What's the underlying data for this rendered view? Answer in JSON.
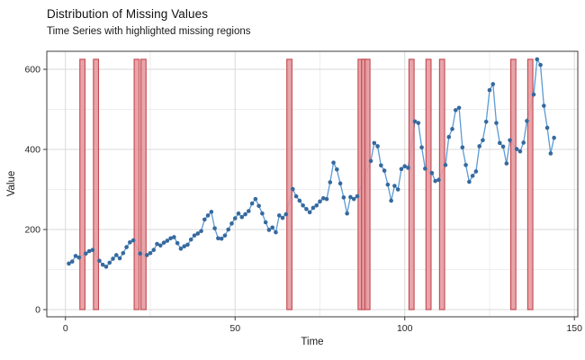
{
  "chart": {
    "title": "Distribution of Missing Values",
    "subtitle": "Time Series with highlighted missing regions",
    "xlabel": "Time",
    "ylabel": "Value"
  },
  "chart_data": {
    "type": "line",
    "title": "Distribution of Missing Values",
    "subtitle": "Time Series with highlighted missing regions",
    "xlabel": "Time",
    "ylabel": "Value",
    "x": [
      1,
      2,
      3,
      4,
      5,
      6,
      7,
      8,
      9,
      10,
      11,
      12,
      13,
      14,
      15,
      16,
      17,
      18,
      19,
      20,
      21,
      22,
      23,
      24,
      25,
      26,
      27,
      28,
      29,
      30,
      31,
      32,
      33,
      34,
      35,
      36,
      37,
      38,
      39,
      40,
      41,
      42,
      43,
      44,
      45,
      46,
      47,
      48,
      49,
      50,
      51,
      52,
      53,
      54,
      55,
      56,
      57,
      58,
      59,
      60,
      61,
      62,
      63,
      64,
      65,
      66,
      67,
      68,
      69,
      70,
      71,
      72,
      73,
      74,
      75,
      76,
      77,
      78,
      79,
      80,
      81,
      82,
      83,
      84,
      85,
      86,
      87,
      88,
      89,
      90,
      91,
      92,
      93,
      94,
      95,
      96,
      97,
      98,
      99,
      100,
      101,
      102,
      103,
      104,
      105,
      106,
      107,
      108,
      109,
      110,
      111,
      112,
      113,
      114,
      115,
      116,
      117,
      118,
      119,
      120,
      121,
      122,
      123,
      124,
      125,
      126,
      127,
      128,
      129,
      130,
      131,
      132,
      133,
      134,
      135,
      136,
      137,
      138,
      139,
      140,
      141,
      142,
      143,
      144
    ],
    "values": [
      115,
      120,
      134,
      130,
      null,
      140,
      146,
      149,
      null,
      122,
      112,
      107,
      117,
      127,
      136,
      128,
      141,
      156,
      168,
      173,
      null,
      140,
      null,
      136,
      141,
      149,
      164,
      160,
      167,
      172,
      178,
      181,
      166,
      152,
      158,
      162,
      175,
      185,
      190,
      196,
      225,
      235,
      244,
      203,
      178,
      177,
      185,
      200,
      215,
      228,
      240,
      231,
      238,
      246,
      265,
      276,
      259,
      240,
      218,
      199,
      205,
      193,
      235,
      229,
      238,
      null,
      301,
      283,
      272,
      260,
      251,
      243,
      254,
      260,
      270,
      278,
      276,
      318,
      367,
      350,
      315,
      280,
      240,
      281,
      276,
      283,
      null,
      null,
      null,
      371,
      416,
      408,
      360,
      347,
      312,
      272,
      309,
      300,
      351,
      358,
      354,
      null,
      470,
      466,
      405,
      352,
      null,
      341,
      321,
      324,
      null,
      361,
      431,
      451,
      498,
      504,
      405,
      361,
      319,
      334,
      345,
      408,
      423,
      469,
      548,
      563,
      466,
      416,
      407,
      365,
      423,
      null,
      401,
      395,
      417,
      471,
      null,
      537,
      625,
      611,
      509,
      454,
      390,
      429
    ],
    "missing_times": [
      5,
      9,
      21,
      23,
      66,
      87,
      88,
      89,
      102,
      107,
      111,
      132,
      137
    ],
    "missing_bar": {
      "ymin": 0,
      "ymax": 625,
      "width": 1.5
    },
    "xlim": [
      -5.5,
      151
    ],
    "ylim": [
      -18,
      645
    ],
    "xticks": [
      0,
      50,
      100,
      150
    ],
    "yticks": [
      0,
      200,
      400,
      600
    ],
    "xticks_minor": [
      25,
      75,
      125
    ],
    "yticks_minor": [
      100,
      300,
      500
    ],
    "grid": true,
    "legend": false,
    "colors": {
      "line": "#5b9bd5",
      "point": "#36699e",
      "bar_fill": "#e59aa0",
      "bar_stroke": "#c2474e",
      "grid_major": "#d9d9d9",
      "grid_minor": "#eeeeee",
      "axis": "#3c3c3c",
      "text": "#1a1a1a"
    }
  }
}
